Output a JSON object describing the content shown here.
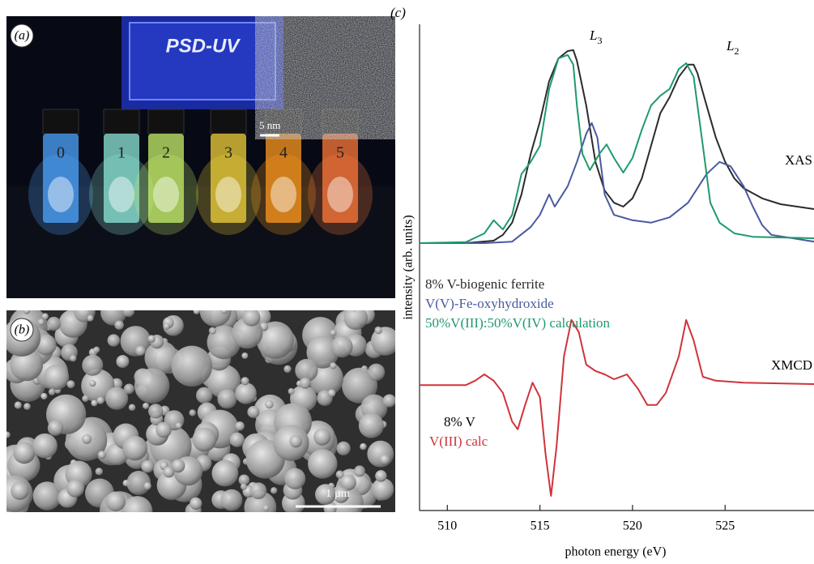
{
  "panels": {
    "a": {
      "label": "(a)",
      "sign": "PSD-UV",
      "inset_scale": "5 nm",
      "vial_labels": [
        "0",
        "1",
        "2",
        "3",
        "4",
        "5"
      ]
    },
    "b": {
      "label": "(b)",
      "scale": "1 µm"
    }
  },
  "chart_data": {
    "type": "line",
    "panel_label": "(c)",
    "xlabel": "photon energy (eV)",
    "ylabel": "intensity (arb. units)",
    "xlim": [
      508.5,
      529.8
    ],
    "ylim": [
      0,
      100
    ],
    "xticks": [
      510,
      515,
      520,
      525
    ],
    "series": [
      {
        "name": "8% V-biogenic ferrite",
        "color": "#2b2b2b",
        "x": [
          508.5,
          511,
          512.5,
          513,
          513.5,
          514,
          514.5,
          515,
          515.5,
          516,
          516.5,
          516.8,
          517,
          517.5,
          518,
          518.5,
          519,
          519.5,
          520,
          520.5,
          521,
          521.5,
          522,
          522.5,
          523,
          523.3,
          523.5,
          524,
          524.5,
          525,
          525.5,
          526,
          527,
          528,
          529.8
        ],
        "values": [
          55,
          55,
          55.5,
          56.7,
          59.2,
          65,
          73.3,
          80,
          88.3,
          93,
          94.5,
          94.7,
          92.5,
          83.3,
          71.7,
          65.8,
          63.3,
          62.5,
          64.2,
          68.3,
          75,
          81.7,
          85,
          89.2,
          91.7,
          91.7,
          90,
          83.3,
          76.7,
          71.7,
          68.3,
          66.3,
          64.2,
          63,
          62
        ]
      },
      {
        "name": "V(V)-Fe-oxyhydroxide",
        "color": "#4a5aa0",
        "x": [
          508.5,
          512,
          513.5,
          514.5,
          515,
          515.5,
          515.8,
          516.5,
          517,
          517.5,
          517.8,
          518.1,
          518.5,
          519,
          520,
          521,
          522,
          523,
          524,
          524.7,
          525.3,
          526,
          526.5,
          527,
          527.5,
          529.8
        ],
        "values": [
          55,
          55,
          55.3,
          58.3,
          60.8,
          65,
          62.5,
          66.7,
          71.7,
          77.5,
          79.7,
          76.7,
          65,
          60.8,
          59.7,
          59.2,
          60.3,
          63.3,
          69.2,
          71.7,
          70.8,
          66.7,
          62.5,
          58.7,
          56.7,
          55.3
        ]
      },
      {
        "name": "50%V(III):50%V(IV) calculation",
        "color": "#1f9a6a",
        "x": [
          508.5,
          511,
          512,
          512.5,
          513,
          513.5,
          514,
          514.5,
          515,
          515.5,
          516,
          516.5,
          516.8,
          517,
          517.3,
          517.7,
          518.2,
          518.6,
          519,
          519.5,
          520,
          520.5,
          521,
          521.5,
          522,
          522.5,
          522.9,
          523.3,
          523.8,
          524.2,
          524.7,
          525.5,
          526.5,
          529.8
        ],
        "values": [
          55,
          55.2,
          57,
          59.7,
          57.8,
          60.8,
          69.2,
          71.7,
          75,
          86.7,
          93,
          93.7,
          91.7,
          83.3,
          73.3,
          70,
          73.3,
          75.3,
          72.5,
          69.5,
          72.5,
          78.3,
          83.3,
          85.3,
          86.7,
          90.8,
          92,
          89.2,
          75,
          63.3,
          59.2,
          57,
          56.3,
          56
        ]
      },
      {
        "name": "V(III) calc",
        "color": "#d0333a",
        "x": [
          508.5,
          511,
          511.5,
          512,
          512.5,
          513,
          513.5,
          513.8,
          514.2,
          514.6,
          515,
          515.3,
          515.6,
          515.9,
          516.3,
          516.7,
          517.1,
          517.5,
          518,
          518.5,
          519,
          519.7,
          520.3,
          520.8,
          521.3,
          521.8,
          522.5,
          522.9,
          523.3,
          523.8,
          524.5,
          526,
          529.8
        ],
        "values": [
          25.8,
          25.8,
          26.7,
          28,
          26.7,
          24.2,
          18.3,
          16.7,
          21.7,
          26.3,
          23.3,
          11.7,
          3,
          13.3,
          31.7,
          39.2,
          36.7,
          30,
          28.7,
          28,
          27,
          28,
          25,
          21.7,
          21.7,
          24.2,
          31.7,
          39.2,
          35,
          27.5,
          26.7,
          26.3,
          26
        ]
      }
    ],
    "annotations": [
      {
        "text": "L",
        "sub": "3"
      },
      {
        "text": "L",
        "sub": "2"
      },
      {
        "text": "XAS"
      },
      {
        "text": "XMCD"
      },
      {
        "text": "8% V"
      }
    ]
  }
}
